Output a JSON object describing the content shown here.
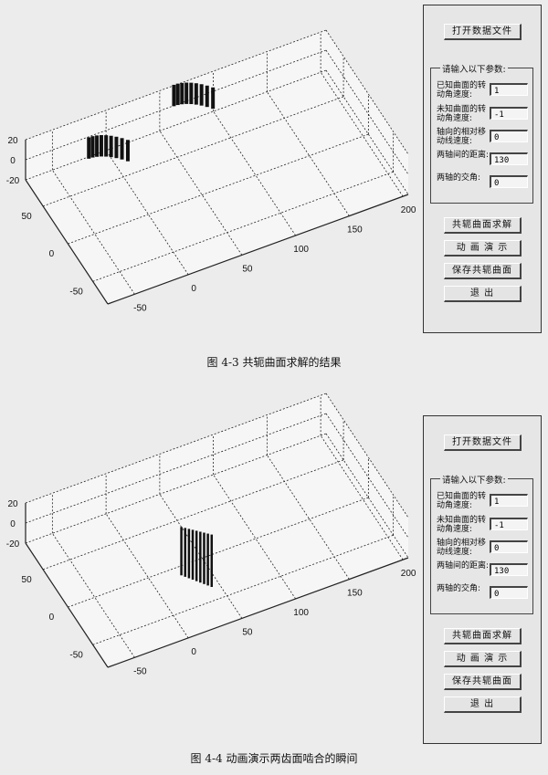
{
  "figures": [
    {
      "caption": "图 4-3   共轭曲面求解的结果",
      "plot": {
        "x_ticks": [
          "-50",
          "0",
          "50",
          "100",
          "150",
          "200"
        ],
        "y_ticks": [
          "-50",
          "0",
          "50"
        ],
        "z_ticks": [
          "-20",
          "0",
          "20"
        ],
        "xlim": [
          -75,
          205
        ],
        "ylim": [
          -80,
          85
        ],
        "zlim": [
          -20,
          20
        ],
        "grid": true,
        "surfaces": [
          {
            "x": -30,
            "y": 55
          },
          {
            "x": 60,
            "y": 78
          }
        ]
      },
      "panel": {
        "open_button": "打开数据文件",
        "group_title": "请输入以下参数:",
        "params": [
          {
            "label": "已知曲面的转动角速度:",
            "value": "1"
          },
          {
            "label": "未知曲面的转动角速度:",
            "value": "-1"
          },
          {
            "label": "轴向的相对移动线速度:",
            "value": "0"
          },
          {
            "label": "两轴间的距离:",
            "value": "130"
          },
          {
            "label": "两轴的交角:",
            "value": "0"
          }
        ],
        "buttons": [
          "共轭曲面求解",
          "动 画 演 示",
          "保存共轭曲面",
          "退      出"
        ]
      }
    },
    {
      "caption": "图 4-4   动画演示两齿面啮合的瞬间",
      "plot": {
        "x_ticks": [
          "-50",
          "0",
          "50",
          "100",
          "150",
          "200"
        ],
        "y_ticks": [
          "-50",
          "0",
          "50"
        ],
        "z_ticks": [
          "-20",
          "0",
          "20"
        ],
        "xlim": [
          -75,
          205
        ],
        "ylim": [
          -80,
          85
        ],
        "zlim": [
          -20,
          20
        ],
        "grid": true,
        "surfaces": [
          {
            "x": 40,
            "y": 20,
            "mesh": true
          }
        ]
      },
      "panel": {
        "open_button": "打开数据文件",
        "group_title": "请输入以下参数:",
        "params": [
          {
            "label": "已知曲面的转动角速度:",
            "value": "1"
          },
          {
            "label": "未知曲面的转动角速度:",
            "value": "-1"
          },
          {
            "label": "轴向的相对移动线速度:",
            "value": "0"
          },
          {
            "label": "两轴间的距离:",
            "value": "130"
          },
          {
            "label": "两轴的交角:",
            "value": "0"
          }
        ],
        "buttons": [
          "共轭曲面求解",
          "动 画 演 示",
          "保存共轭曲面",
          "退      出"
        ]
      }
    }
  ]
}
